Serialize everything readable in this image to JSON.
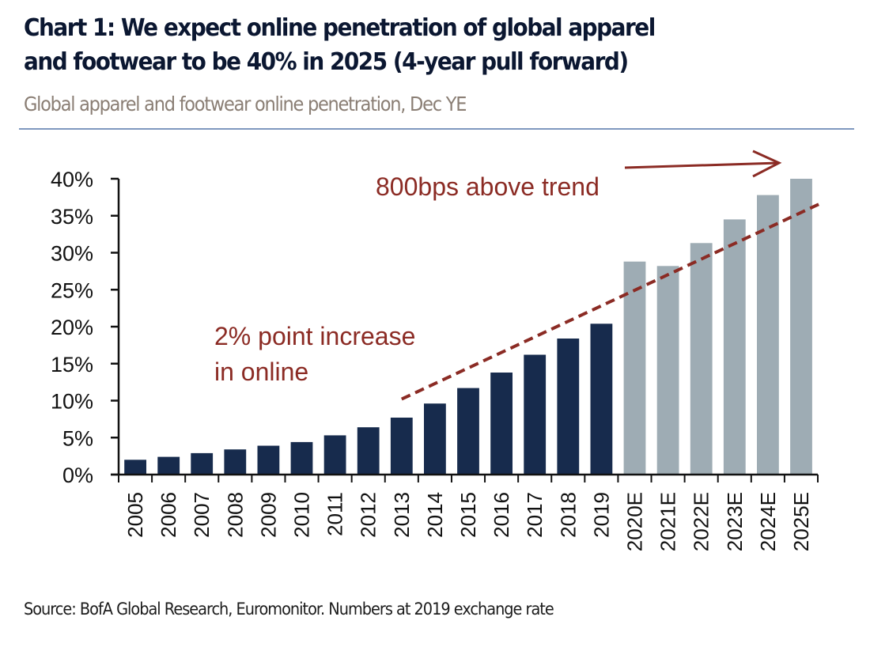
{
  "header": {
    "title_line1": "Chart 1: We expect online penetration of global apparel",
    "title_line2": "and footwear to be 40% in 2025 (4-year pull forward)",
    "subtitle": "Global apparel and footwear online penetration, Dec YE"
  },
  "footer": {
    "source": "Source: BofA Global Research, Euromonitor. Numbers at 2019 exchange rate"
  },
  "colors": {
    "actual_bar": "#172b4d",
    "estimate_bar": "#9eacb4",
    "annotation": "#8b2b24",
    "axis": "#111111",
    "title": "#0b1731"
  },
  "chart_data": {
    "type": "bar",
    "title": "Global apparel and footwear online penetration, Dec YE",
    "xlabel": "",
    "ylabel": "",
    "ylim": [
      0,
      40
    ],
    "yticks": [
      "0%",
      "5%",
      "10%",
      "15%",
      "20%",
      "25%",
      "30%",
      "35%",
      "40%"
    ],
    "ytick_values": [
      0,
      5,
      10,
      15,
      20,
      25,
      30,
      35,
      40
    ],
    "grid": false,
    "categories": [
      "2005",
      "2006",
      "2007",
      "2008",
      "2009",
      "2010",
      "2011",
      "2012",
      "2013",
      "2014",
      "2015",
      "2016",
      "2017",
      "2018",
      "2019",
      "2020E",
      "2021E",
      "2022E",
      "2023E",
      "2024E",
      "2025E"
    ],
    "values": [
      2.0,
      2.4,
      2.9,
      3.4,
      3.9,
      4.4,
      5.3,
      6.4,
      7.7,
      9.6,
      11.7,
      13.8,
      16.2,
      18.4,
      20.4,
      28.8,
      28.2,
      31.3,
      34.5,
      37.8,
      40.0
    ],
    "is_estimate": [
      false,
      false,
      false,
      false,
      false,
      false,
      false,
      false,
      false,
      false,
      false,
      false,
      false,
      false,
      false,
      true,
      true,
      true,
      true,
      true,
      true
    ],
    "trend_line": {
      "style": "dashed",
      "from": {
        "x": "2013",
        "y": 10.2
      },
      "to": {
        "x": "2025E",
        "y": 36.6
      }
    },
    "annotations": [
      {
        "text": "800bps above trend",
        "kind": "label"
      },
      {
        "text": "2% point increase",
        "kind": "label"
      },
      {
        "text": "in online",
        "kind": "label"
      }
    ]
  }
}
